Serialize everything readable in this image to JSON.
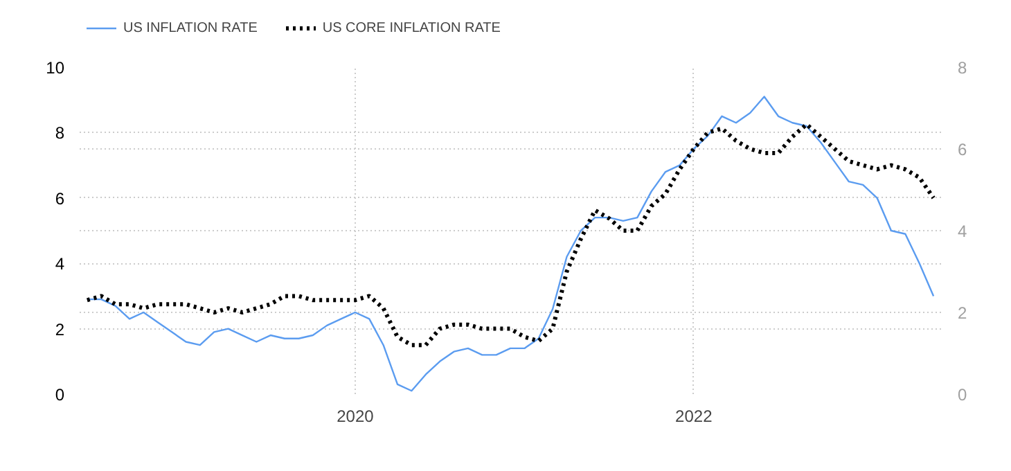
{
  "chart_data": {
    "type": "line",
    "x": [
      "2018-06",
      "2018-07",
      "2018-08",
      "2018-09",
      "2018-10",
      "2018-11",
      "2018-12",
      "2019-01",
      "2019-02",
      "2019-03",
      "2019-04",
      "2019-05",
      "2019-06",
      "2019-07",
      "2019-08",
      "2019-09",
      "2019-10",
      "2019-11",
      "2019-12",
      "2020-01",
      "2020-02",
      "2020-03",
      "2020-04",
      "2020-05",
      "2020-06",
      "2020-07",
      "2020-08",
      "2020-09",
      "2020-10",
      "2020-11",
      "2020-12",
      "2021-01",
      "2021-02",
      "2021-03",
      "2021-04",
      "2021-05",
      "2021-06",
      "2021-07",
      "2021-08",
      "2021-09",
      "2021-10",
      "2021-11",
      "2021-12",
      "2022-01",
      "2022-02",
      "2022-03",
      "2022-04",
      "2022-05",
      "2022-06",
      "2022-07",
      "2022-08",
      "2022-09",
      "2022-10",
      "2022-11",
      "2022-12",
      "2023-01",
      "2023-02",
      "2023-03",
      "2023-04",
      "2023-05",
      "2023-06"
    ],
    "series": [
      {
        "name": "US INFLATION RATE",
        "color": "#5b9cf0",
        "line_style": "solid",
        "values": [
          2.9,
          2.9,
          2.7,
          2.3,
          2.5,
          2.2,
          1.9,
          1.6,
          1.5,
          1.9,
          2.0,
          1.8,
          1.6,
          1.8,
          1.7,
          1.7,
          1.8,
          2.1,
          2.3,
          2.5,
          2.3,
          1.5,
          0.3,
          0.1,
          0.6,
          1.0,
          1.3,
          1.4,
          1.2,
          1.2,
          1.4,
          1.4,
          1.7,
          2.6,
          4.2,
          5.0,
          5.4,
          5.4,
          5.3,
          5.4,
          6.2,
          6.8,
          7.0,
          7.5,
          7.9,
          8.5,
          8.3,
          8.6,
          9.1,
          8.5,
          8.3,
          8.2,
          7.7,
          7.1,
          6.5,
          6.4,
          6.0,
          5.0,
          4.9,
          4.0,
          3.0
        ]
      },
      {
        "name": "US CORE INFLATION RATE",
        "color": "#000000",
        "line_style": "dotted",
        "axis": "y2",
        "values": [
          2.3,
          2.4,
          2.2,
          2.2,
          2.1,
          2.2,
          2.2,
          2.2,
          2.1,
          2.0,
          2.1,
          2.0,
          2.1,
          2.2,
          2.4,
          2.4,
          2.3,
          2.3,
          2.3,
          2.3,
          2.4,
          2.1,
          1.4,
          1.2,
          1.2,
          1.6,
          1.7,
          1.7,
          1.6,
          1.6,
          1.6,
          1.4,
          1.3,
          1.6,
          3.0,
          3.8,
          4.5,
          4.3,
          4.0,
          4.0,
          4.6,
          4.9,
          5.5,
          6.0,
          6.4,
          6.5,
          6.2,
          6.0,
          5.9,
          5.9,
          6.3,
          6.6,
          6.3,
          6.0,
          5.7,
          5.6,
          5.5,
          5.6,
          5.5,
          5.3,
          4.8
        ]
      }
    ],
    "xlim": [
      "2018-05-15",
      "2023-06-20"
    ],
    "xticks": [
      {
        "value": "2020-01-01",
        "label": "2020"
      },
      {
        "value": "2022-01-01",
        "label": "2022"
      }
    ],
    "ylim": [
      0,
      10
    ],
    "yticks": [
      0,
      2,
      4,
      6,
      8,
      10
    ],
    "y2lim": [
      0,
      8
    ],
    "y2ticks": [
      0,
      2,
      4,
      6,
      8
    ],
    "grid": true,
    "legend": "top left",
    "marker": "none"
  }
}
